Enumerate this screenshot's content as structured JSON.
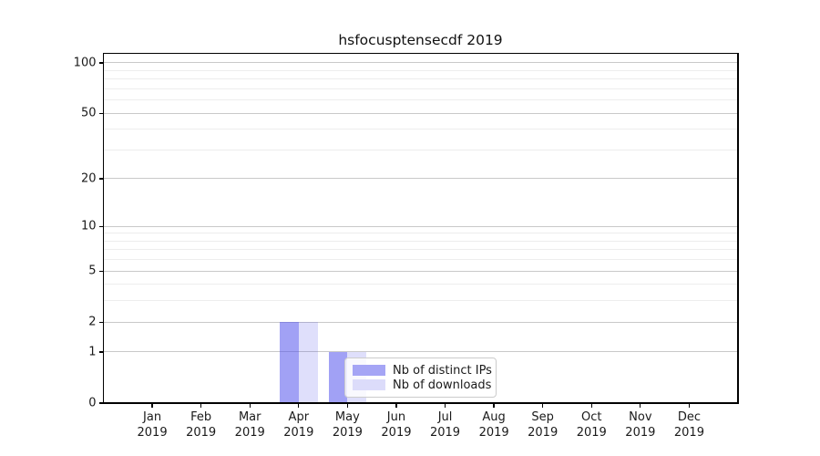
{
  "chart_data": {
    "type": "bar",
    "title": "hsfocusptensecdf 2019",
    "categories": [
      "Jan",
      "Feb",
      "Mar",
      "Apr",
      "May",
      "Jun",
      "Jul",
      "Aug",
      "Sep",
      "Oct",
      "Nov",
      "Dec"
    ],
    "year_label": "2019",
    "series": [
      {
        "name": "Nb of distinct IPs",
        "color": "#a5a5f5",
        "fill_rgba": "rgba(75,75,235,0.52)",
        "values": [
          0,
          0,
          0,
          2,
          1,
          0,
          0,
          0,
          0,
          0,
          0,
          0
        ]
      },
      {
        "name": "Nb of downloads",
        "color": "#dcdcfa",
        "fill_rgba": "rgba(75,75,235,0.18)",
        "values": [
          0,
          0,
          0,
          2,
          1,
          0,
          0,
          0,
          0,
          0,
          0,
          0
        ]
      }
    ],
    "xlabel": "",
    "ylabel": "",
    "yscale": "log1p",
    "yticks": [
      0,
      1,
      2,
      5,
      10,
      20,
      50,
      100
    ],
    "yticks_minor": [
      3,
      4,
      6,
      7,
      8,
      9,
      30,
      40,
      60,
      70,
      80,
      90
    ],
    "ylim": [
      0,
      114
    ],
    "grid": true,
    "legend_position": "lower-center-inside"
  },
  "legend": {
    "items": [
      {
        "label": "Nb of distinct IPs",
        "color": "#a5a5f5"
      },
      {
        "label": "Nb of downloads",
        "color": "#dcdcfa"
      }
    ]
  },
  "colors": {
    "background": "#ffffff",
    "axis": "#000000",
    "text": "#1a1a1a",
    "grid_major": "#c9c9c9",
    "grid_minor": "#ededed"
  }
}
